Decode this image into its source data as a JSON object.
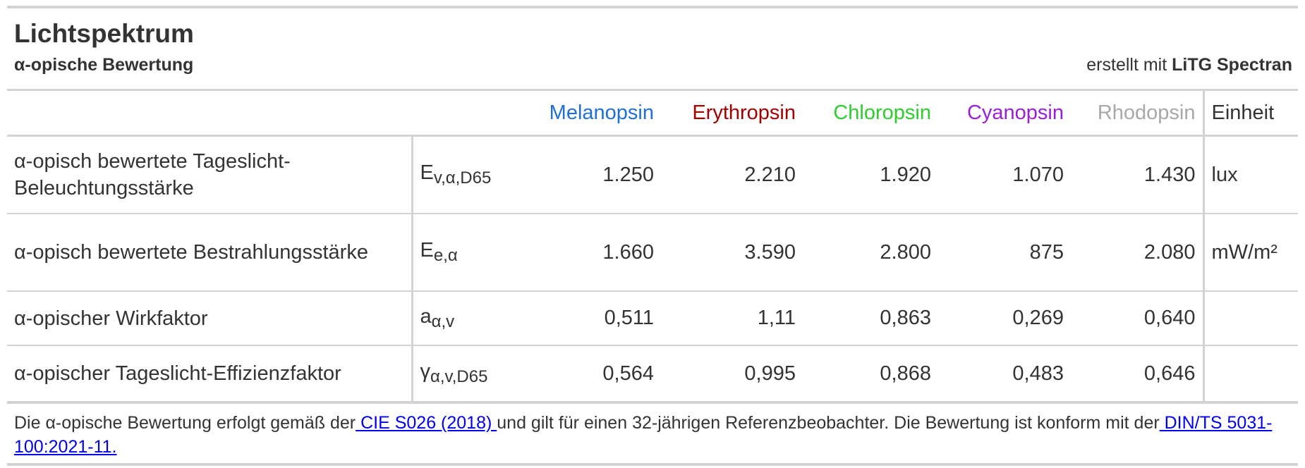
{
  "header": {
    "title": "Lichtspektrum",
    "subtitle": "α-opische Bewertung",
    "credit_prefix": "erstellt mit ",
    "credit_brand": "LiTG Spectran"
  },
  "columns": {
    "melanopsin": "Melanopsin",
    "erythropsin": "Erythropsin",
    "chloropsin": "Chloropsin",
    "cyanopsin": "Cyanopsin",
    "rhodopsin": "Rhodopsin",
    "unit": "Einheit"
  },
  "colors": {
    "melanopsin": "#1f6fd6",
    "erythropsin": "#a30000",
    "chloropsin": "#2ecc2e",
    "cyanopsin": "#9b1fd6",
    "rhodopsin": "#a8a8a8",
    "rule": "#d3d3d3",
    "link": "#0000ee"
  },
  "rows": [
    {
      "label": "α-opisch bewertete Tageslicht-Beleuchtungsstärke",
      "symbol_base": "E",
      "symbol_sub": "v,α,D65",
      "values": [
        "1.250",
        "2.210",
        "1.920",
        "1.070",
        "1.430"
      ],
      "unit": "lux"
    },
    {
      "label": "α-opisch bewertete Bestrahlungsstärke",
      "symbol_base": "E",
      "symbol_sub": "e,α",
      "values": [
        "1.660",
        "3.590",
        "2.800",
        "875",
        "2.080"
      ],
      "unit": "mW/m²"
    },
    {
      "label": "α-opischer Wirkfaktor",
      "symbol_base": "a",
      "symbol_sub": "α,v",
      "values": [
        "0,511",
        "1,11",
        "0,863",
        "0,269",
        "0,640"
      ],
      "unit": ""
    },
    {
      "label": "α-opischer Tageslicht-Effizienzfaktor",
      "symbol_base": "γ",
      "symbol_sub": "α,v,D65",
      "values": [
        "0,564",
        "0,995",
        "0,868",
        "0,483",
        "0,646"
      ],
      "unit": ""
    }
  ],
  "footnote": {
    "text1": "Die α-opische Bewertung erfolgt gemäß der",
    "link1": " CIE S026 (2018) ",
    "text2": "und gilt für einen 32-jährigen Referenzbeobachter. Die Bewertung ist konform mit der",
    "link2": " DIN/TS 5031-100:2021-11."
  }
}
